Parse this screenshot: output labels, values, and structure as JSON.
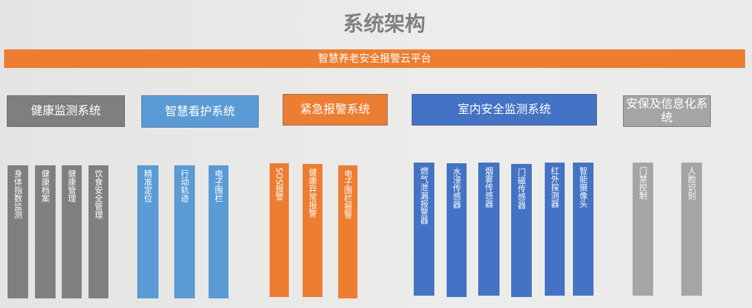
{
  "title": "系统架构",
  "platform": "智慧养老安全报警云平台",
  "colors": {
    "gray": "#7f7f7f",
    "light_blue": "#5b9bd5",
    "orange": "#ed7d31",
    "blue": "#4472c4",
    "light_gray": "#a5a5a5"
  },
  "systems": [
    {
      "label": "健康监测系统",
      "items": [
        "身体指数监测",
        "健康档案",
        "健康管理",
        "饮食安全管理"
      ]
    },
    {
      "label": "智慧看护系统",
      "items": [
        "精准定位",
        "行动轨迹",
        "电子围栏"
      ]
    },
    {
      "label": "紧急报警系统",
      "items": [
        "SOS报警",
        "健康异常报警",
        "电子围栏报警"
      ]
    },
    {
      "label": "室内安全监测系统",
      "items": [
        "燃气泄漏报警器",
        "水浸传感器",
        "烟雾传感器",
        "门磁传感器",
        "红外探测器",
        "智能摄像头"
      ]
    },
    {
      "label": "安保及信息化系统",
      "items": [
        "门禁控制",
        "人脸识别"
      ]
    }
  ]
}
